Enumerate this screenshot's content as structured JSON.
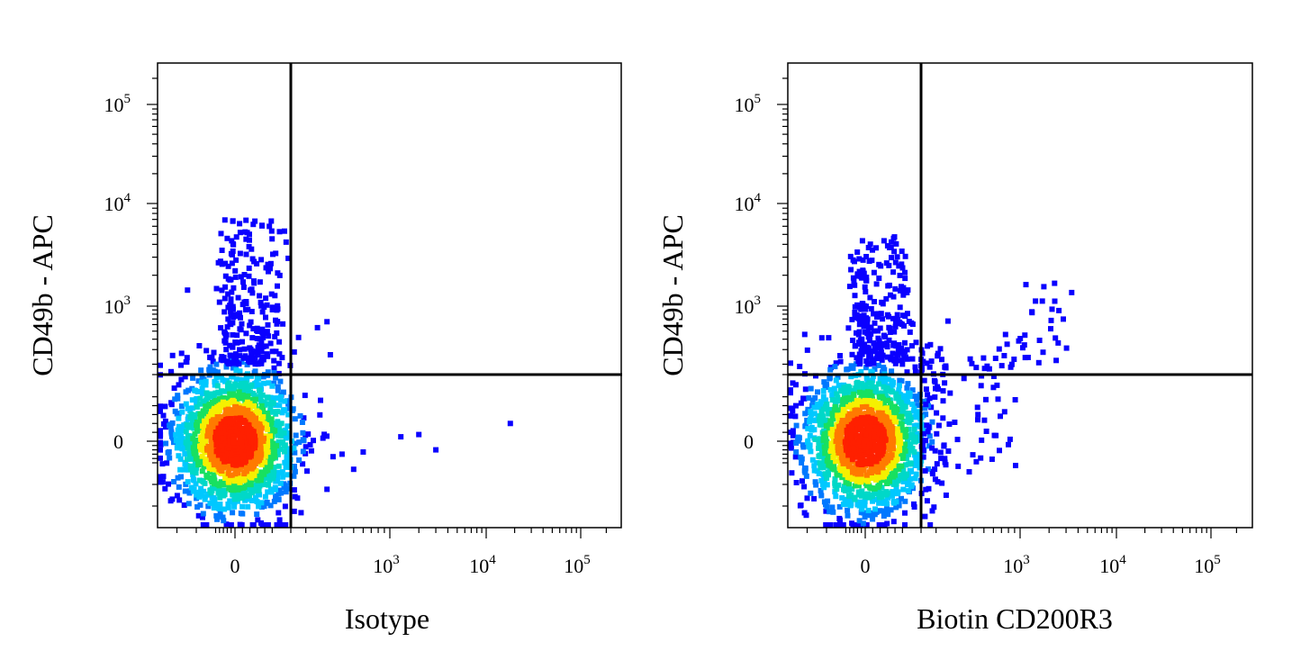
{
  "chart_data": [
    {
      "type": "scatter",
      "xlabel": "Isotype",
      "ylabel": "CD49b - APC",
      "x_ticks": [
        {
          "label": "0",
          "exp": ""
        },
        {
          "label": "10",
          "exp": "3"
        },
        {
          "label": "10",
          "exp": "4"
        },
        {
          "label": "10",
          "exp": "5"
        }
      ],
      "y_ticks": [
        {
          "label": "0",
          "exp": ""
        },
        {
          "label": "10",
          "exp": "3"
        },
        {
          "label": "10",
          "exp": "4"
        },
        {
          "label": "10",
          "exp": "5"
        }
      ],
      "quadrant_gate": {
        "x": 150,
        "y": 150
      },
      "scale": "biexponential (logicle)",
      "colormap": "density (blue → green → yellow → red)",
      "main_population": {
        "x_center": 0,
        "y_center": 0
      },
      "upper_left_population": {
        "x_range": [
          -50,
          120
        ],
        "y_range": [
          200,
          7000
        ]
      },
      "outliers": [
        {
          "x": 300,
          "y": 650
        },
        {
          "x": 250,
          "y": 550
        },
        {
          "x": 320,
          "y": 260
        },
        {
          "x": 2000,
          "y": 15
        },
        {
          "x": 3000,
          "y": -40
        },
        {
          "x": 18000,
          "y": 40
        },
        {
          "x": 1300,
          "y": 10
        },
        {
          "x": 600,
          "y": -50
        },
        {
          "x": 500,
          "y": -130
        },
        {
          "x": 400,
          "y": -60
        }
      ]
    },
    {
      "type": "scatter",
      "xlabel": "Biotin CD200R3",
      "ylabel": "CD49b - APC",
      "x_ticks": [
        {
          "label": "0",
          "exp": ""
        },
        {
          "label": "10",
          "exp": "3"
        },
        {
          "label": "10",
          "exp": "4"
        },
        {
          "label": "10",
          "exp": "5"
        }
      ],
      "y_ticks": [
        {
          "label": "0",
          "exp": ""
        },
        {
          "label": "10",
          "exp": "3"
        },
        {
          "label": "10",
          "exp": "4"
        },
        {
          "label": "10",
          "exp": "5"
        }
      ],
      "quadrant_gate": {
        "x": 150,
        "y": 150
      },
      "scale": "biexponential (logicle)",
      "colormap": "density (blue → green → yellow → red)",
      "main_population": {
        "x_center": 0,
        "y_center": 0
      },
      "upper_left_population": {
        "x_range": [
          -50,
          120
        ],
        "y_range": [
          200,
          5000
        ]
      },
      "upper_right_population": {
        "x_range": [
          700,
          3500
        ],
        "y_range": [
          180,
          1700
        ]
      },
      "lower_right_tail": {
        "x_range": [
          150,
          1000
        ],
        "y_range": [
          -100,
          300
        ]
      }
    }
  ],
  "colors": {
    "density_low": "#0a00ff",
    "density_mid_low": "#00c8ff",
    "density_mid": "#18e060",
    "density_mid_high": "#f5f000",
    "density_high": "#ff2000",
    "axes": "#000000"
  }
}
